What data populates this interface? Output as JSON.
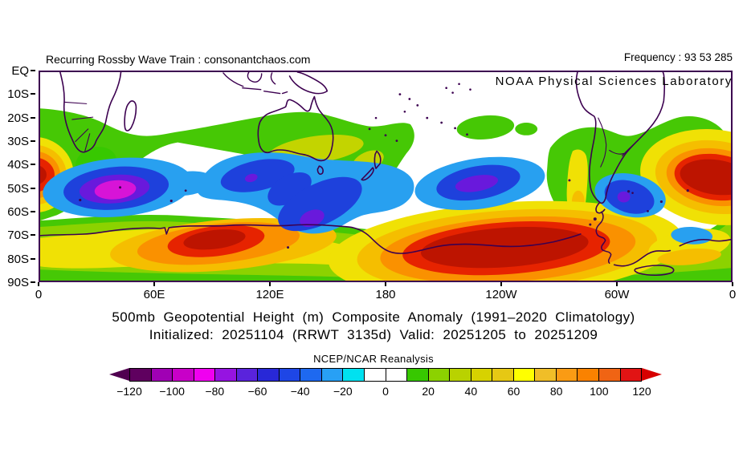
{
  "header": {
    "watermark": "Recurring Rossby Wave Train : consonantchaos.com",
    "frequency_label": "Frequency : 93 53 285",
    "agency": "NOAA Physical Sciences Laboratory"
  },
  "titles": {
    "line1": "500mb Geopotential Height (m) Composite Anomaly (1991–2020 Climatology)",
    "line2": "Initialized: 20251104 (RRWT 3135d) Valid: 20251205 to 20251209",
    "source": "NCEP/NCAR Reanalysis"
  },
  "map": {
    "lat_labels": [
      "EQ",
      "10S",
      "20S",
      "30S",
      "40S",
      "50S",
      "60S",
      "70S",
      "80S",
      "90S"
    ],
    "lon_labels": [
      "0",
      "60E",
      "120E",
      "180",
      "120W",
      "60W",
      "0"
    ],
    "projection": "cylindrical, Southern Hemisphere EQ to 90S, longitude 0 to 360"
  },
  "colorbar": {
    "units": "m",
    "tick_labels": [
      "−120",
      "−100",
      "−80",
      "−60",
      "−40",
      "−20",
      "0",
      "20",
      "40",
      "60",
      "80",
      "100",
      "120"
    ],
    "cell_colors": [
      "#5f005f",
      "#a000b4",
      "#c800c8",
      "#f000f0",
      "#9614e1",
      "#5a23dc",
      "#2828d7",
      "#1e46e6",
      "#1e69f0",
      "#28a0f5",
      "#00e1f0",
      "#ffffff",
      "#ffffff",
      "#37c800",
      "#8cd200",
      "#b9d200",
      "#d7d200",
      "#e6c814",
      "#ffff00",
      "#f0be28",
      "#fa9b14",
      "#fa8200",
      "#f06414",
      "#e11414"
    ],
    "left_arrow_color": "#500050",
    "right_arrow_color": "#d70000"
  },
  "field_summary": {
    "anomaly_centers": [
      {
        "region": "South Indian Ocean ~40E 50S",
        "sign": "negative",
        "peak_band": "-80 to -100"
      },
      {
        "region": "South of Australia 100E-160E 45-60S",
        "sign": "negative",
        "peak_band": "-60 to -80"
      },
      {
        "region": "South Pacific ~150W 48S",
        "sign": "negative",
        "peak_band": "-60 to -80"
      },
      {
        "region": "Southwest Atlantic ~55W 52S",
        "sign": "negative",
        "peak_band": "-60 to -80"
      },
      {
        "region": "East Antarctica ~75E 72S",
        "sign": "positive",
        "peak_band": "110 to 120+"
      },
      {
        "region": "West Antarctica 180-80W 70-80S",
        "sign": "positive",
        "peak_band": "110 to 120+"
      },
      {
        "region": "South Atlantic near 10W 45S",
        "sign": "positive",
        "peak_band": "110 to 120+"
      },
      {
        "region": "Subtropical band 20S-35S circumglobal",
        "sign": "positive",
        "peak_band": "20 to 60"
      }
    ]
  },
  "colors": {
    "frame": "#3c0050",
    "coastline": "#3c0050",
    "map_green": "#46c805",
    "map_yellowgreen": "#8cd200",
    "map_olive": "#c3d400",
    "map_yellow": "#f0e105",
    "map_gold": "#f5be00",
    "map_orange": "#fa9100",
    "map_red": "#e62300",
    "map_darkred": "#bd1400",
    "map_skyblue": "#28a0f0",
    "map_blue": "#1e41dc",
    "map_violet": "#6919dc",
    "map_magenta": "#d714d7"
  }
}
